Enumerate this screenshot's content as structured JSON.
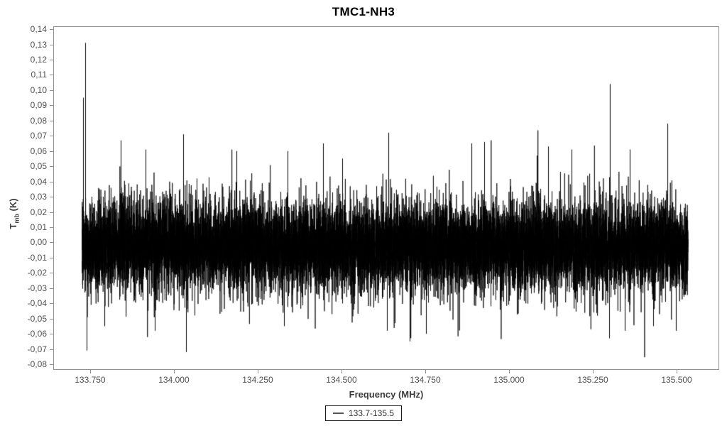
{
  "chart_data": {
    "type": "line",
    "title": "TMC1-NH3",
    "xlabel": "Frequency (MHz)",
    "ylabel": "Tmb (K)",
    "ylabel_parts": {
      "pre": "T",
      "sub": "mb",
      "post": " (K)"
    },
    "legend": {
      "position": "bottom-center",
      "entries": [
        {
          "label": "133.7-135.5",
          "color": "#000000"
        }
      ]
    },
    "xlim": [
      133.64,
      135.627
    ],
    "ylim": [
      -0.0837,
      0.1419
    ],
    "x_ticks": {
      "values": [
        133.75,
        134.0,
        134.25,
        134.5,
        134.75,
        135.0,
        135.25,
        135.5
      ],
      "labels": [
        "133.750",
        "134.000",
        "134.250",
        "134.500",
        "134.750",
        "135.000",
        "135.250",
        "135.500"
      ]
    },
    "y_ticks": {
      "values": [
        0.14,
        0.13,
        0.12,
        0.11,
        0.1,
        0.09,
        0.08,
        0.07,
        0.06,
        0.05,
        0.04,
        0.03,
        0.02,
        0.01,
        0.0,
        -0.01,
        -0.02,
        -0.03,
        -0.04,
        -0.05,
        -0.06,
        -0.07,
        -0.08
      ],
      "labels": [
        "0,14",
        "0,13",
        "0,12",
        "0,11",
        "0,10",
        "0,09",
        "0,08",
        "0,07",
        "0,06",
        "0,05",
        "0,04",
        "0,03",
        "0,02",
        "0,01",
        "0,00",
        "-0,01",
        "-0,02",
        "-0,03",
        "-0,04",
        "-0,05",
        "-0,06",
        "-0,07",
        "-0,08"
      ]
    },
    "grid": false,
    "series": [
      {
        "name": "133.7-135.5",
        "description": "dense radio-spectrum noise band centered near 0 K",
        "x_range": [
          133.726,
          135.534
        ],
        "noise": {
          "mean_K": -0.0025,
          "sigma_K": 0.0165,
          "typical_band_K": [
            -0.035,
            0.035
          ],
          "samples_per_pixel": 8,
          "heavy_tail_prob": 0.006,
          "heavy_tail_scale": 1.8,
          "seed": 1337
        },
        "spikes": [
          {
            "x": 133.729,
            "y": 0.095
          },
          {
            "x": 133.735,
            "y": 0.131
          },
          {
            "x": 133.739,
            "y": -0.071
          },
          {
            "x": 133.792,
            "y": -0.055
          },
          {
            "x": 133.841,
            "y": 0.067
          },
          {
            "x": 133.915,
            "y": 0.061
          },
          {
            "x": 133.943,
            "y": -0.058
          },
          {
            "x": 134.028,
            "y": 0.071
          },
          {
            "x": 134.036,
            "y": -0.072
          },
          {
            "x": 134.186,
            "y": 0.06
          },
          {
            "x": 134.328,
            "y": -0.055
          },
          {
            "x": 134.339,
            "y": 0.06
          },
          {
            "x": 134.445,
            "y": 0.065
          },
          {
            "x": 134.502,
            "y": 0.055
          },
          {
            "x": 134.636,
            "y": -0.058
          },
          {
            "x": 134.64,
            "y": 0.072
          },
          {
            "x": 134.703,
            "y": -0.065
          },
          {
            "x": 134.752,
            "y": -0.06
          },
          {
            "x": 134.888,
            "y": 0.065
          },
          {
            "x": 134.926,
            "y": 0.066
          },
          {
            "x": 135.083,
            "y": 0.057
          },
          {
            "x": 135.117,
            "y": 0.063
          },
          {
            "x": 135.187,
            "y": 0.061
          },
          {
            "x": 135.299,
            "y": -0.063
          },
          {
            "x": 135.301,
            "y": 0.104
          },
          {
            "x": 135.345,
            "y": -0.058
          },
          {
            "x": 135.36,
            "y": 0.061
          },
          {
            "x": 135.43,
            "y": -0.055
          },
          {
            "x": 135.472,
            "y": 0.078
          },
          {
            "x": 135.498,
            "y": -0.058
          }
        ]
      }
    ],
    "colors": {
      "line": "#000000",
      "frame": "#8f8f8f",
      "tick_text": "#4f4f4f",
      "axis_title_text": "#3c3c3c",
      "title_text": "#000000",
      "background": "#ffffff"
    }
  }
}
